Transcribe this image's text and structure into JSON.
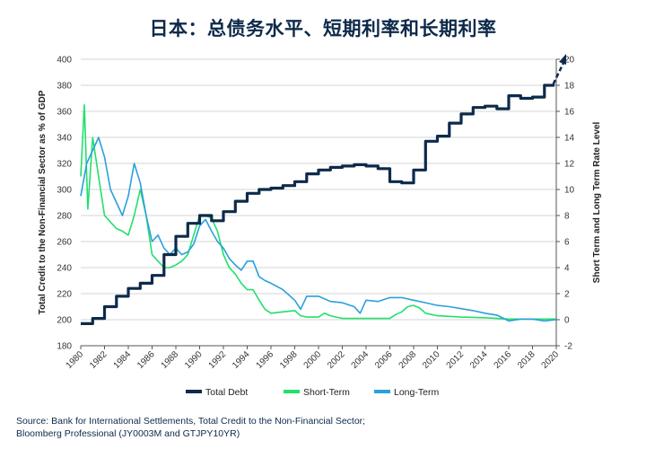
{
  "title": "日本：总债务水平、短期利率和长期利率",
  "source": {
    "line1": "Source: Bank for International Settlements, Total Credit to the Non-Financial Sector;",
    "line2": "Bloomberg Professional (JY0003M and GTJPY10YR)"
  },
  "colors": {
    "total_debt": "#0d2a4a",
    "short_term": "#22e06b",
    "long_term": "#2aa0dc"
  },
  "chart_data": {
    "type": "line",
    "xlabel": "",
    "x_ticks": [
      "1980",
      "1982",
      "1984",
      "1986",
      "1988",
      "1990",
      "1992",
      "1994",
      "1996",
      "1998",
      "2000",
      "2002",
      "2004",
      "2006",
      "2008",
      "2010",
      "2012",
      "2014",
      "2016",
      "2018",
      "2020"
    ],
    "left_axis": {
      "label": "Total Credit to the Non-Financial Sector as % of GDP",
      "ylim": [
        180,
        400
      ],
      "ticks": [
        "180",
        "200",
        "220",
        "240",
        "260",
        "280",
        "300",
        "320",
        "340",
        "360",
        "380",
        "400"
      ]
    },
    "right_axis": {
      "label": "Short Term and Long Term Rate Level",
      "ylim": [
        -2,
        20
      ],
      "ticks": [
        "-2",
        "0",
        "2",
        "4",
        "6",
        "8",
        "10",
        "12",
        "14",
        "16",
        "18",
        "20"
      ]
    },
    "legend_position": "bottom",
    "series": [
      {
        "name": "Total Debt",
        "axis": "left",
        "x": [
          1980,
          1981,
          1982,
          1983,
          1984,
          1985,
          1986,
          1987,
          1988,
          1989,
          1990,
          1991,
          1992,
          1993,
          1994,
          1995,
          1996,
          1997,
          1998,
          1999,
          2000,
          2001,
          2002,
          2003,
          2004,
          2005,
          2006,
          2007,
          2008,
          2009,
          2010,
          2011,
          2012,
          2013,
          2014,
          2015,
          2016,
          2017,
          2018,
          2019,
          2019.75
        ],
        "values": [
          197,
          201,
          210,
          218,
          224,
          228,
          234,
          250,
          264,
          274,
          280,
          276,
          283,
          291,
          297,
          300,
          301,
          303,
          306,
          312,
          315,
          317,
          318,
          319,
          318,
          316,
          306,
          305,
          315,
          337,
          341,
          351,
          358,
          363,
          364,
          362,
          372,
          370,
          371,
          380,
          381
        ]
      },
      {
        "name": "Short-Term",
        "axis": "right",
        "x": [
          1980,
          1980.3,
          1980.6,
          1981,
          1981.5,
          1982,
          1982.5,
          1983,
          1983.5,
          1984,
          1984.5,
          1985,
          1985.5,
          1986,
          1986.5,
          1987,
          1987.5,
          1988,
          1988.5,
          1989,
          1989.5,
          1990,
          1990.5,
          1991,
          1991.5,
          1992,
          1992.5,
          1993,
          1993.5,
          1994,
          1994.5,
          1995,
          1995.5,
          1996,
          1997,
          1998,
          1998.5,
          1999,
          2000,
          2000.5,
          2001,
          2002,
          2003,
          2004,
          2005,
          2006,
          2006.5,
          2007,
          2007.5,
          2008,
          2008.5,
          2009,
          2010,
          2012,
          2014,
          2016,
          2018,
          2020
        ],
        "values": [
          11,
          16.5,
          8.5,
          14,
          11,
          8,
          7.5,
          7,
          6.8,
          6.5,
          8,
          10,
          8,
          5,
          4.5,
          4,
          4,
          4.2,
          4.5,
          5,
          6.5,
          8,
          8,
          7.8,
          6.8,
          5,
          4,
          3.5,
          2.8,
          2.3,
          2.3,
          1.5,
          0.8,
          0.5,
          0.6,
          0.7,
          0.3,
          0.2,
          0.2,
          0.5,
          0.3,
          0.1,
          0.1,
          0.1,
          0.1,
          0.1,
          0.4,
          0.6,
          1,
          1.1,
          0.9,
          0.5,
          0.3,
          0.2,
          0.15,
          0.05,
          0.05,
          0.05
        ]
      },
      {
        "name": "Long-Term",
        "axis": "right",
        "x": [
          1980,
          1980.5,
          1981,
          1981.5,
          1982,
          1982.5,
          1983,
          1983.5,
          1984,
          1984.5,
          1985,
          1985.5,
          1986,
          1986.5,
          1987,
          1987.5,
          1988,
          1988.5,
          1989,
          1989.5,
          1990,
          1990.5,
          1991,
          1991.5,
          1992,
          1992.5,
          1993,
          1993.5,
          1994,
          1994.5,
          1995,
          1995.5,
          1996,
          1997,
          1998,
          1998.5,
          1999,
          2000,
          2001,
          2002,
          2003,
          2003.5,
          2004,
          2005,
          2006,
          2007,
          2008,
          2009,
          2010,
          2011,
          2012,
          2013,
          2014,
          2015,
          2016,
          2017,
          2018,
          2019,
          2020
        ],
        "values": [
          9.5,
          12,
          13,
          14,
          12.5,
          10,
          9,
          8,
          9.5,
          12,
          10.5,
          8,
          6,
          6.5,
          5.5,
          5,
          5.5,
          5,
          5.2,
          5.8,
          7.2,
          7.7,
          6.8,
          6,
          5.5,
          4.7,
          4.2,
          3.8,
          4.5,
          4.5,
          3.3,
          3,
          2.8,
          2.3,
          1.5,
          0.8,
          1.8,
          1.8,
          1.4,
          1.3,
          1,
          0.5,
          1.5,
          1.4,
          1.7,
          1.7,
          1.5,
          1.3,
          1.1,
          1,
          0.85,
          0.7,
          0.5,
          0.35,
          -0.1,
          0.05,
          0.05,
          -0.1,
          0
        ]
      }
    ]
  }
}
